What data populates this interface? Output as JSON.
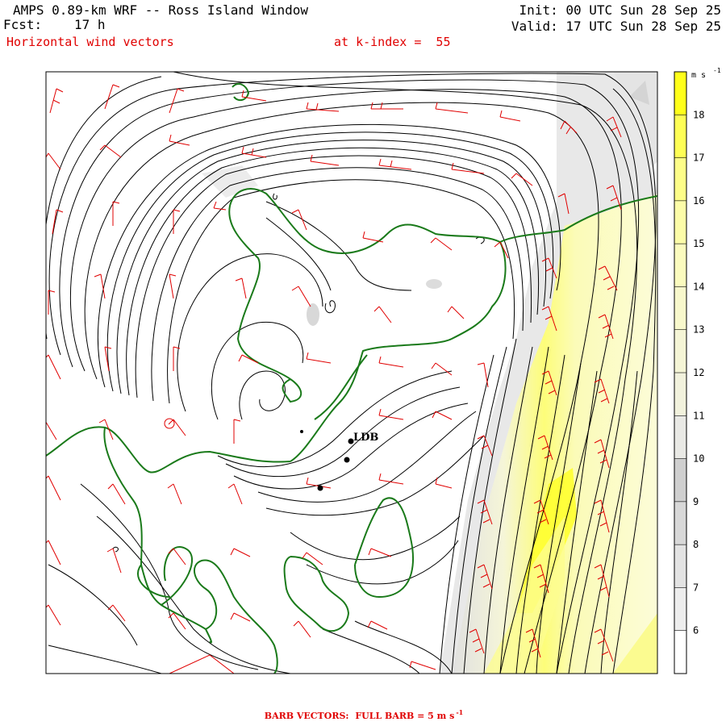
{
  "header": {
    "title": "AMPS 0.89-km WRF -- Ross Island Window",
    "forecast_label": "Fcst:",
    "forecast_value": "17 h",
    "field": "Horizontal wind vectors",
    "level": "at k-index =  55",
    "init": "Init: 00 UTC Sun 28 Sep 25",
    "valid": "Valid: 17 UTC Sun 28 Sep 25"
  },
  "colorbar": {
    "unit": "m s",
    "unit_exp": "-1",
    "ticks": [
      "18",
      "17",
      "16",
      "15",
      "14",
      "13",
      "12",
      "11",
      "10",
      "9",
      "8",
      "7",
      "6"
    ],
    "levels": [
      {
        "label": "<6",
        "color": "#ffffff"
      },
      {
        "label": "6",
        "color": "#ededed"
      },
      {
        "label": "7",
        "color": "#e3e3e3"
      },
      {
        "label": "8",
        "color": "#d8d8d8"
      },
      {
        "label": "9",
        "color": "#cfcfcf"
      },
      {
        "label": "10",
        "color": "#e9e9e5"
      },
      {
        "label": "11",
        "color": "#f2f2dd"
      },
      {
        "label": "12",
        "color": "#f5f5d6"
      },
      {
        "label": "13",
        "color": "#f8f8cc"
      },
      {
        "label": "14",
        "color": "#fbfbbe"
      },
      {
        "label": "15",
        "color": "#fcfca8"
      },
      {
        "label": "16",
        "color": "#fdfd88"
      },
      {
        "label": "17",
        "color": "#fefe55"
      },
      {
        "label": "18+",
        "color": "#ffff1a"
      }
    ]
  },
  "station": {
    "label": "LDB"
  },
  "footer": {
    "label": "BARB VECTORS:",
    "text": "FULL BARB = 5 m s",
    "exp": "-1"
  },
  "colors": {
    "coast": "#1a7a1a",
    "barb": "#e00000",
    "contour": "#000000"
  }
}
